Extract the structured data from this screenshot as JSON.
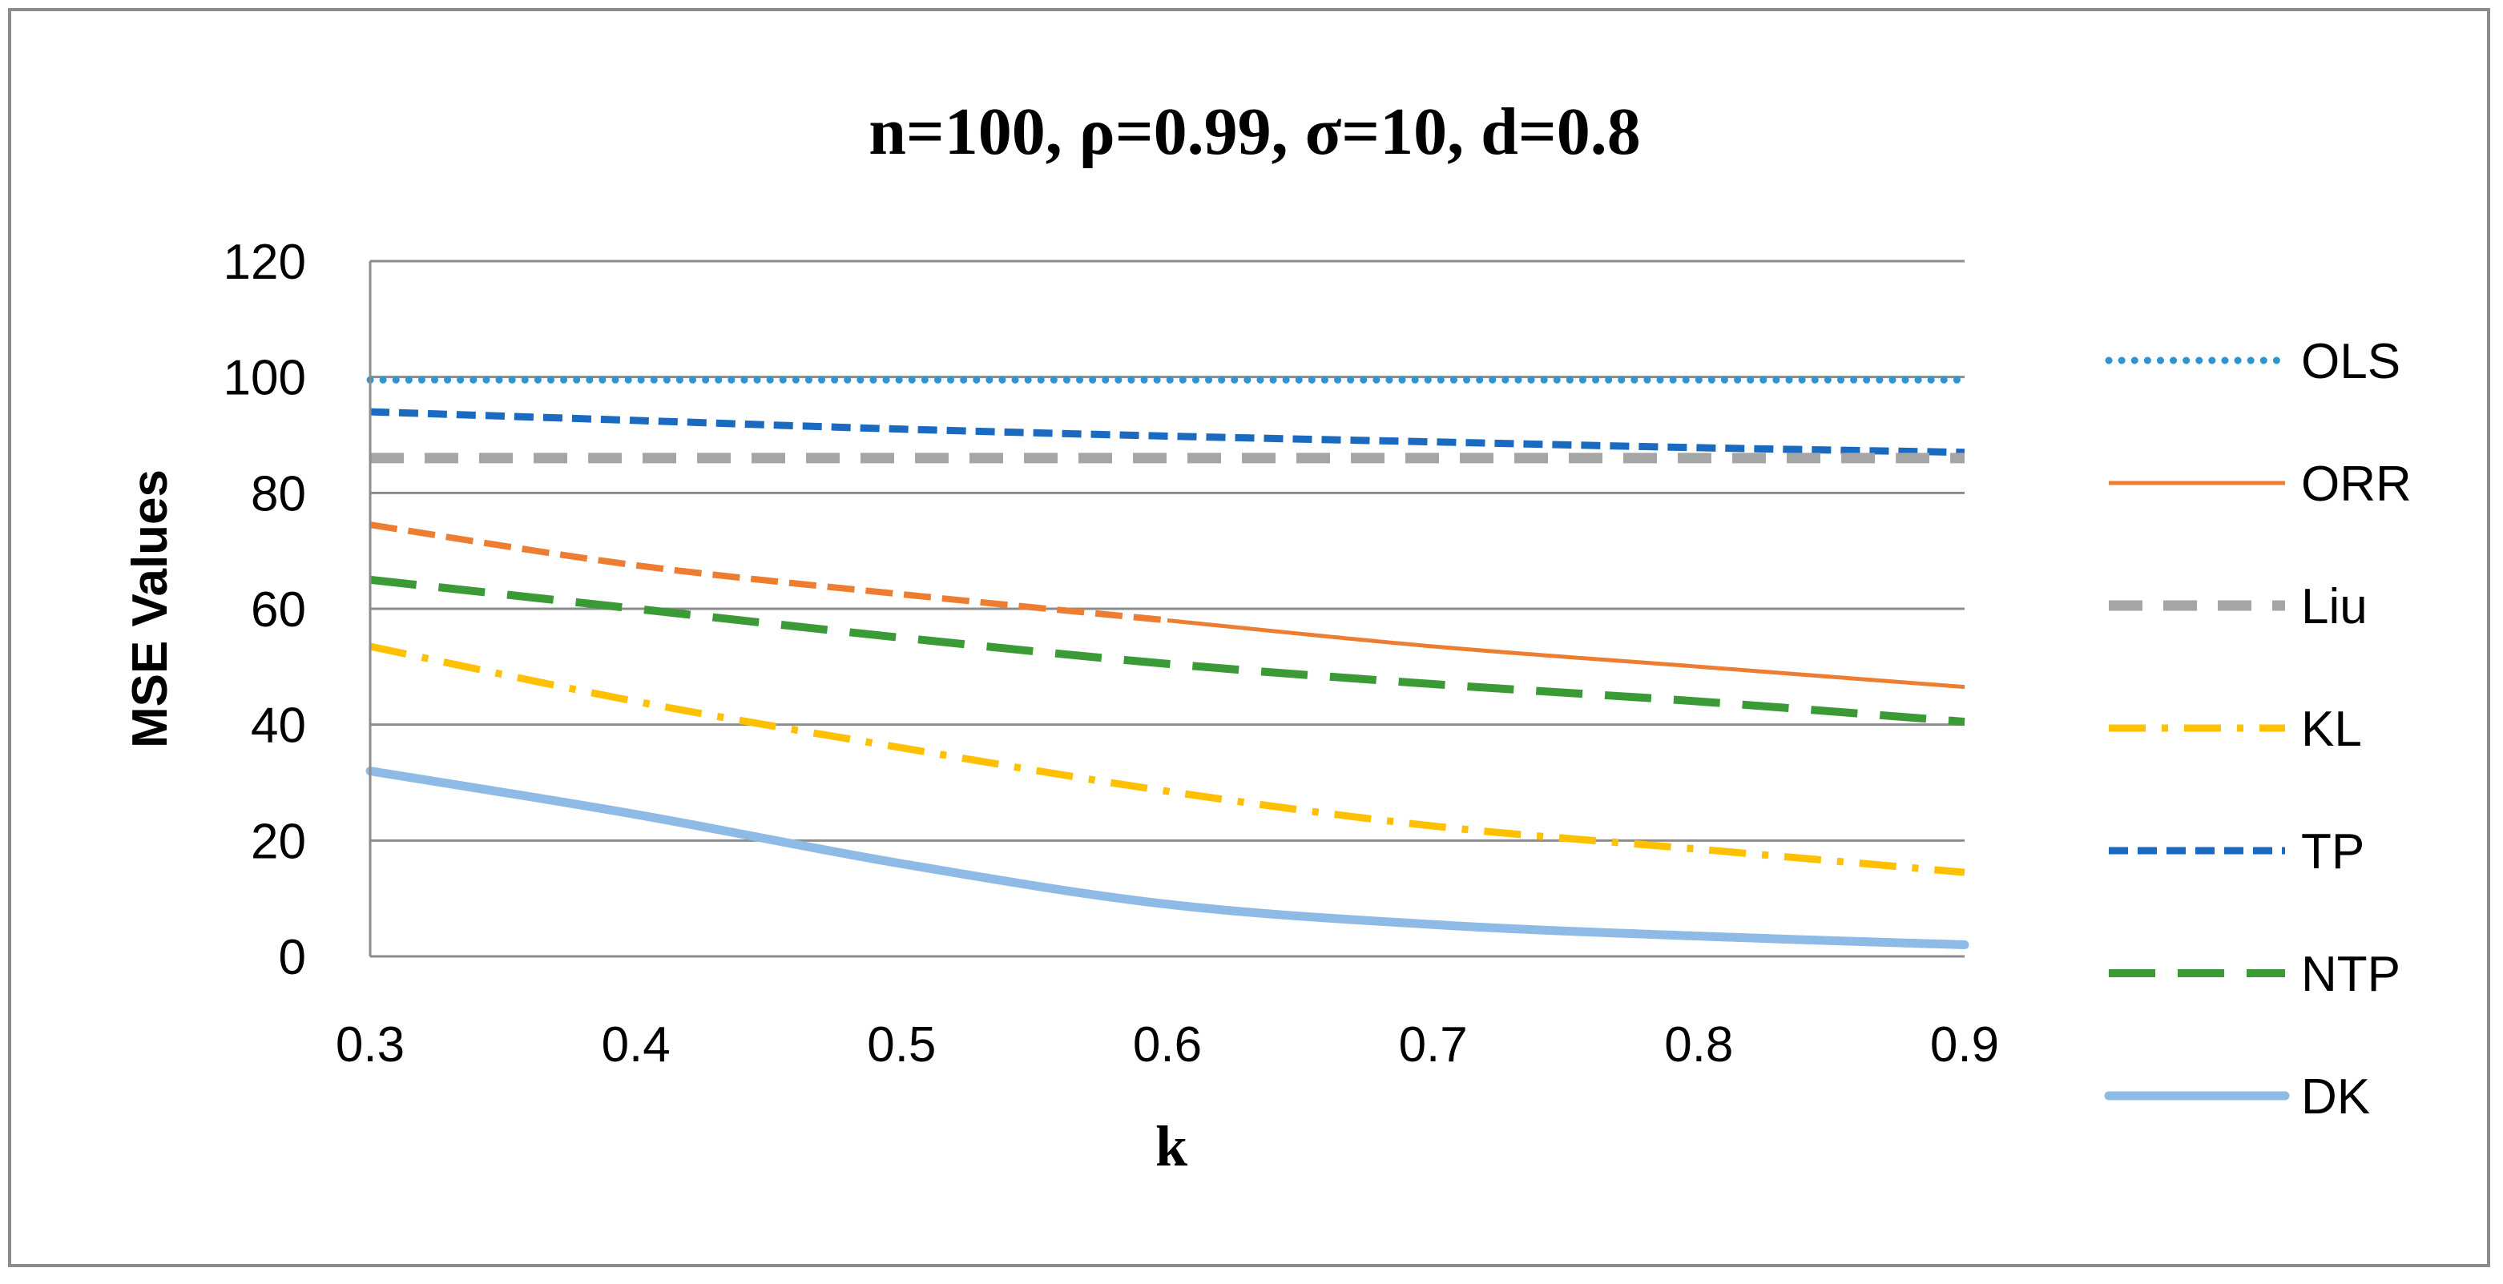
{
  "chart_data": {
    "type": "line",
    "title": "n=100, ρ=0.99, σ=10, d=0.8",
    "xlabel": "k",
    "ylabel": "MSE Values",
    "x": [
      0.3,
      0.4,
      0.5,
      0.6,
      0.7,
      0.8,
      0.9
    ],
    "x_tick_labels": [
      "0.3",
      "0.4",
      "0.5",
      "0.6",
      "0.7",
      "0.8",
      "0.9"
    ],
    "xlim": [
      0.3,
      0.9
    ],
    "ylim": [
      0,
      120
    ],
    "y_ticks": [
      0,
      20,
      40,
      60,
      80,
      100,
      120
    ],
    "y_tick_labels": [
      "0",
      "20",
      "40",
      "60",
      "80",
      "100",
      "120"
    ],
    "grid": true,
    "legend_position": "right",
    "series": [
      {
        "name": "OLS",
        "color": "#2e95d0",
        "dash": "dotted",
        "values": [
          99.5,
          99.5,
          99.5,
          99.5,
          99.5,
          99.5,
          99.5
        ]
      },
      {
        "name": "ORR",
        "color": "#ed7d31",
        "dash": "dash-solid",
        "values": [
          74.5,
          67.5,
          62.5,
          58.0,
          53.5,
          50.0,
          46.5
        ]
      },
      {
        "name": "Liu",
        "color": "#a5a5a5",
        "dash": "dash",
        "values": [
          86.0,
          86.0,
          86.0,
          86.0,
          86.0,
          86.0,
          86.0
        ]
      },
      {
        "name": "KL",
        "color": "#ffc000",
        "dash": "dashdot",
        "values": [
          53.5,
          44.0,
          36.0,
          28.5,
          22.5,
          18.5,
          14.5
        ]
      },
      {
        "name": "TP",
        "color": "#1a6ac0",
        "dash": "shortdash",
        "values": [
          94.0,
          92.5,
          91.0,
          89.8,
          88.8,
          87.8,
          87.0
        ]
      },
      {
        "name": "NTP",
        "color": "#3a9a35",
        "dash": "longdash",
        "values": [
          65.0,
          60.0,
          55.0,
          50.5,
          47.0,
          44.0,
          40.5
        ]
      },
      {
        "name": "DK",
        "color": "#8ebbe6",
        "dash": "solid",
        "values": [
          32.0,
          24.5,
          16.0,
          9.0,
          5.5,
          3.5,
          2.0
        ]
      }
    ]
  }
}
